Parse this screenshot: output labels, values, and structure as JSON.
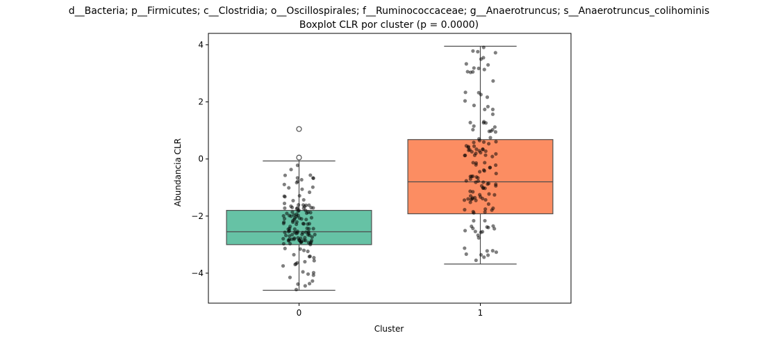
{
  "chart_data": {
    "type": "boxplot",
    "title": "d__Bacteria; p__Firmicutes; c__Clostridia; o__Oscillospirales; f__Ruminococcaceae; g__Anaerotruncus; s__Anaerotruncus_colihominis",
    "subtitle": "Boxplot CLR por cluster (p = 0.0000)",
    "xlabel": "Cluster",
    "ylabel": "Abundancia CLR",
    "ylim": [
      -5.05,
      4.4
    ],
    "yticks": [
      4,
      2,
      0,
      -2,
      -4
    ],
    "yticklabels": [
      "4",
      "2",
      "0",
      "−2",
      "−4"
    ],
    "categories": [
      "0",
      "1"
    ],
    "boxes": [
      {
        "category": "0",
        "color": "#66c2a5",
        "whisker_low": -4.6,
        "q1": -3.0,
        "median": -2.55,
        "q3": -1.8,
        "whisker_high": -0.07,
        "outliers": [
          1.05,
          0.05
        ]
      },
      {
        "category": "1",
        "color": "#fc8d62",
        "whisker_low": -3.68,
        "q1": -1.92,
        "median": -0.8,
        "q3": 0.68,
        "whisker_high": 3.95,
        "outliers": []
      }
    ],
    "grid": false,
    "point_color": "#000000"
  }
}
